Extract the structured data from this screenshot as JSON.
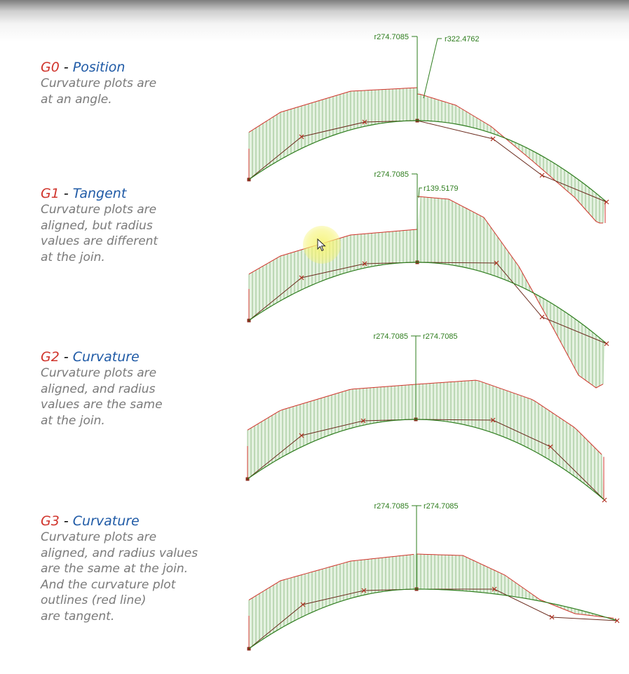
{
  "sections": [
    {
      "code": "G0",
      "title": "Position",
      "description": "Curvature plots are\nat an angle.",
      "radius_left": "r274.7085",
      "radius_right": "r322.4762"
    },
    {
      "code": "G1",
      "title": "Tangent",
      "description": "Curvature plots are\naligned, but radius\nvalues are different\nat the join.",
      "radius_left": "r274.7085",
      "radius_right": "r139.5179"
    },
    {
      "code": "G2",
      "title": "Curvature",
      "description": "Curvature plots are\naligned, and radius\nvalues are the same\nat the join.",
      "radius_left": "r274.7085",
      "radius_right": "r274.7085"
    },
    {
      "code": "G3",
      "title": "Curvature",
      "description": "Curvature plots are\naligned, and radius values\nare the same at the join.\nAnd the curvature plot\noutlines (red line)\nare tangent.",
      "radius_left": "r274.7085",
      "radius_right": "r274.7085"
    }
  ],
  "colors": {
    "code": "#d0342c",
    "title": "#1f5aa6",
    "description": "#7a7a7a",
    "curve": "#2e7d1e",
    "outline": "#d0342c",
    "fill": "#cfe8c8"
  }
}
